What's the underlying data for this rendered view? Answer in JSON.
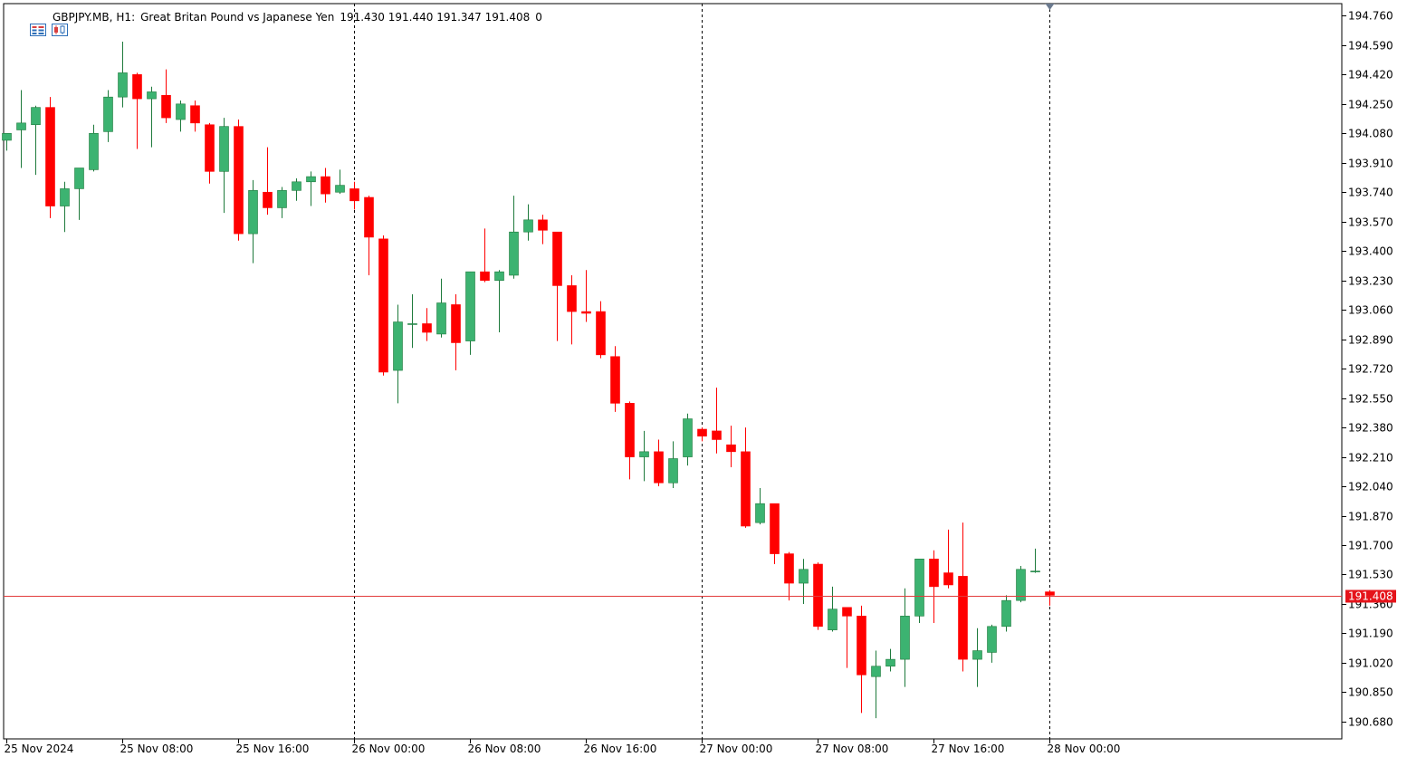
{
  "header": {
    "symbol": "GBPJPY.MB",
    "timeframe": "H1:",
    "description": "Great Britan Pound vs Japanese Yen",
    "ohlc": "191.430 191.440 191.347 191.408",
    "spread": "0"
  },
  "icons": {
    "menu": "chart-menu-icon",
    "chart_type": "candlestick-icon"
  },
  "colors": {
    "bull": "#3CB371",
    "bear": "#FF0000",
    "bid_line": "#E23C3C",
    "price_label_bg": "#E5141B",
    "axis": "#000000",
    "grid": "#000000"
  },
  "chart_data": {
    "type": "candlestick",
    "ylim": [
      190.58,
      194.83
    ],
    "y_ticks": [
      "194.760",
      "194.590",
      "194.420",
      "194.250",
      "194.080",
      "193.910",
      "193.740",
      "193.570",
      "193.400",
      "193.230",
      "193.060",
      "192.890",
      "192.720",
      "192.550",
      "192.380",
      "192.210",
      "192.040",
      "191.870",
      "191.700",
      "191.530",
      "191.360",
      "191.190",
      "191.020",
      "190.850",
      "190.680"
    ],
    "x_labels": [
      {
        "bar": 0,
        "text": "25 Nov 2024"
      },
      {
        "bar": 8,
        "text": "25 Nov 08:00"
      },
      {
        "bar": 16,
        "text": "25 Nov 16:00"
      },
      {
        "bar": 24,
        "text": "26 Nov 00:00"
      },
      {
        "bar": 32,
        "text": "26 Nov 08:00"
      },
      {
        "bar": 40,
        "text": "26 Nov 16:00"
      },
      {
        "bar": 48,
        "text": "27 Nov 00:00"
      },
      {
        "bar": 56,
        "text": "27 Nov 08:00"
      },
      {
        "bar": 64,
        "text": "27 Nov 16:00"
      },
      {
        "bar": 72,
        "text": "28 Nov 00:00"
      }
    ],
    "day_separators_bar": [
      24,
      48,
      72
    ],
    "current_price": 191.408,
    "current_price_label": "191.408",
    "candles": [
      [
        194.04,
        194.07,
        193.98,
        194.08
      ],
      [
        194.1,
        194.33,
        193.88,
        194.14
      ],
      [
        194.13,
        194.24,
        193.84,
        194.23
      ],
      [
        194.23,
        194.29,
        193.59,
        193.66
      ],
      [
        193.66,
        193.8,
        193.51,
        193.76
      ],
      [
        193.76,
        193.85,
        193.58,
        193.88
      ],
      [
        193.87,
        194.13,
        193.86,
        194.08
      ],
      [
        194.09,
        194.33,
        194.03,
        194.29
      ],
      [
        194.29,
        194.61,
        194.23,
        194.43
      ],
      [
        194.42,
        194.43,
        193.99,
        194.28
      ],
      [
        194.28,
        194.35,
        194.0,
        194.32
      ],
      [
        194.3,
        194.45,
        194.14,
        194.17
      ],
      [
        194.16,
        194.27,
        194.09,
        194.25
      ],
      [
        194.24,
        194.27,
        194.09,
        194.14
      ],
      [
        194.13,
        194.14,
        193.79,
        193.86
      ],
      [
        193.86,
        194.17,
        193.62,
        194.12
      ],
      [
        194.12,
        194.16,
        193.46,
        193.5
      ],
      [
        193.5,
        193.81,
        193.33,
        193.75
      ],
      [
        193.74,
        194.0,
        193.61,
        193.65
      ],
      [
        193.65,
        193.77,
        193.59,
        193.75
      ],
      [
        193.75,
        193.82,
        193.69,
        193.8
      ],
      [
        193.8,
        193.86,
        193.66,
        193.83
      ],
      [
        193.83,
        193.88,
        193.68,
        193.73
      ],
      [
        193.74,
        193.87,
        193.73,
        193.78
      ],
      [
        193.76,
        193.8,
        193.64,
        193.69
      ],
      [
        193.71,
        193.72,
        193.26,
        193.48
      ],
      [
        193.47,
        193.49,
        192.68,
        192.7
      ],
      [
        192.71,
        193.09,
        192.52,
        192.99
      ],
      [
        192.98,
        193.15,
        192.84,
        192.98
      ],
      [
        192.98,
        193.07,
        192.88,
        192.93
      ],
      [
        192.92,
        193.24,
        192.9,
        193.1
      ],
      [
        193.09,
        193.15,
        192.71,
        192.87
      ],
      [
        192.88,
        193.28,
        192.8,
        193.28
      ],
      [
        193.28,
        193.53,
        193.22,
        193.23
      ],
      [
        193.23,
        193.29,
        192.93,
        193.28
      ],
      [
        193.26,
        193.72,
        193.24,
        193.51
      ],
      [
        193.51,
        193.67,
        193.46,
        193.58
      ],
      [
        193.58,
        193.61,
        193.44,
        193.52
      ],
      [
        193.51,
        193.51,
        192.88,
        193.2
      ],
      [
        193.2,
        193.26,
        192.86,
        193.05
      ],
      [
        193.05,
        193.29,
        192.99,
        193.04
      ],
      [
        193.05,
        193.11,
        192.78,
        192.8
      ],
      [
        192.79,
        192.85,
        192.47,
        192.52
      ],
      [
        192.52,
        192.53,
        192.08,
        192.21
      ],
      [
        192.21,
        192.36,
        192.07,
        192.24
      ],
      [
        192.24,
        192.31,
        192.04,
        192.06
      ],
      [
        192.06,
        192.3,
        192.03,
        192.2
      ],
      [
        192.21,
        192.46,
        192.16,
        192.43
      ],
      [
        192.37,
        192.38,
        192.3,
        192.33
      ],
      [
        192.36,
        192.61,
        192.23,
        192.31
      ],
      [
        192.28,
        192.39,
        192.15,
        192.24
      ],
      [
        192.24,
        192.38,
        191.8,
        191.81
      ],
      [
        191.83,
        192.03,
        191.82,
        191.94
      ],
      [
        191.94,
        191.94,
        191.59,
        191.65
      ],
      [
        191.65,
        191.66,
        191.38,
        191.48
      ],
      [
        191.48,
        191.62,
        191.36,
        191.56
      ],
      [
        191.59,
        191.6,
        191.21,
        191.23
      ],
      [
        191.21,
        191.46,
        191.2,
        191.33
      ],
      [
        191.34,
        191.34,
        190.99,
        191.29
      ],
      [
        191.29,
        191.35,
        190.73,
        190.95
      ],
      [
        190.94,
        191.09,
        190.7,
        191.0
      ],
      [
        191.0,
        191.1,
        190.97,
        191.04
      ],
      [
        191.04,
        191.45,
        190.88,
        191.29
      ],
      [
        191.29,
        191.62,
        191.25,
        191.62
      ],
      [
        191.62,
        191.67,
        191.25,
        191.46
      ],
      [
        191.54,
        191.79,
        191.45,
        191.47
      ],
      [
        191.52,
        191.83,
        190.97,
        191.04
      ],
      [
        191.04,
        191.22,
        190.88,
        191.09
      ],
      [
        191.08,
        191.24,
        191.02,
        191.23
      ],
      [
        191.23,
        191.41,
        191.2,
        191.38
      ],
      [
        191.38,
        191.58,
        191.37,
        191.56
      ],
      [
        191.55,
        191.68,
        191.54,
        191.55
      ],
      [
        191.43,
        191.44,
        191.35,
        191.41
      ]
    ]
  }
}
